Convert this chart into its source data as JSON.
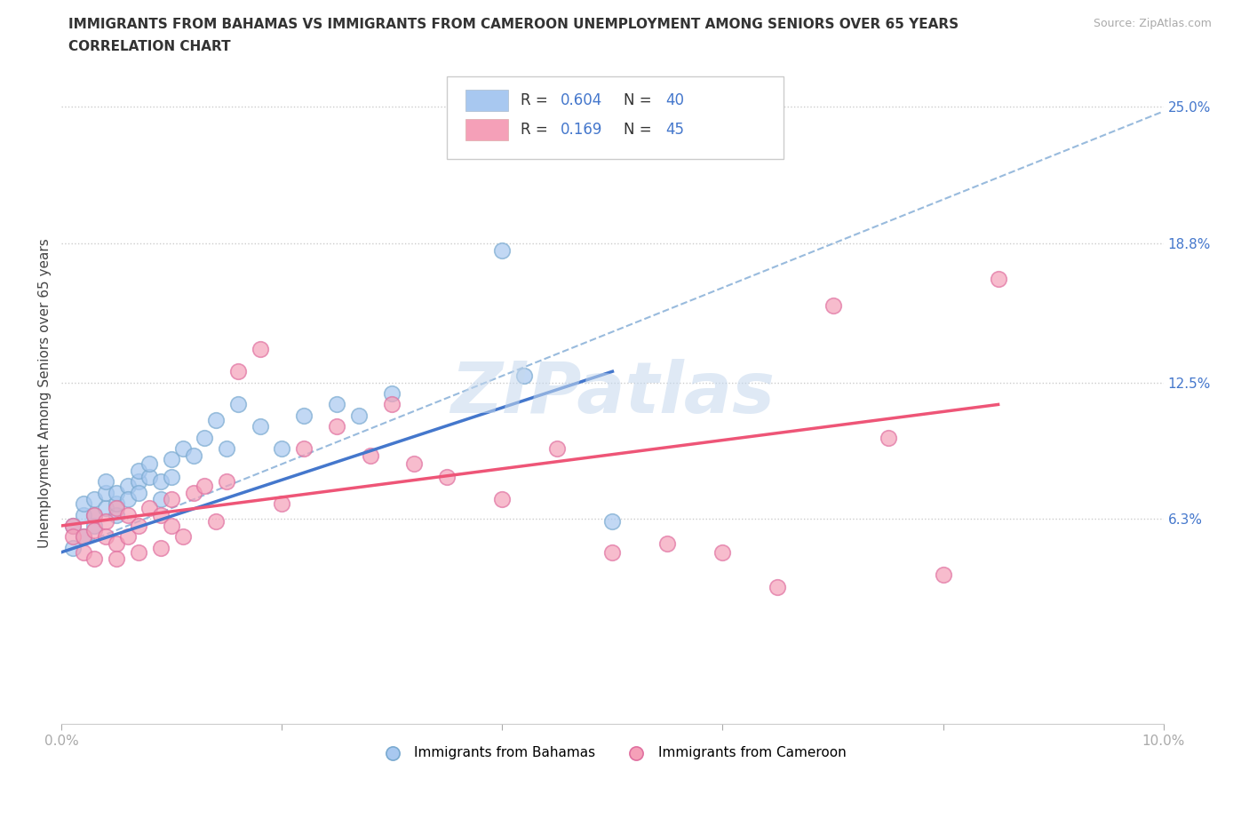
{
  "title_line1": "IMMIGRANTS FROM BAHAMAS VS IMMIGRANTS FROM CAMEROON UNEMPLOYMENT AMONG SENIORS OVER 65 YEARS",
  "title_line2": "CORRELATION CHART",
  "source_text": "Source: ZipAtlas.com",
  "ylabel": "Unemployment Among Seniors over 65 years",
  "xlim": [
    0.0,
    0.1
  ],
  "ylim": [
    -0.03,
    0.27
  ],
  "x_ticks": [
    0.0,
    0.02,
    0.04,
    0.06,
    0.08,
    0.1
  ],
  "x_tick_labels": [
    "0.0%",
    "",
    "",
    "",
    "",
    "10.0%"
  ],
  "y_tick_labels_right": [
    "25.0%",
    "18.8%",
    "12.5%",
    "6.3%"
  ],
  "y_tick_values_right": [
    0.25,
    0.188,
    0.125,
    0.063
  ],
  "bahamas_R": 0.604,
  "bahamas_N": 40,
  "cameroon_R": 0.169,
  "cameroon_N": 45,
  "bahamas_color": "#a8c8f0",
  "cameroon_color": "#f5a0b8",
  "bahamas_edge_color": "#7aaad0",
  "cameroon_edge_color": "#e070a0",
  "bahamas_line_color": "#4477cc",
  "cameroon_line_color": "#ee5577",
  "dashed_line_color": "#99bbdd",
  "legend_text_color": "#4477cc",
  "watermark": "ZIPatlas",
  "bahamas_scatter_x": [
    0.001,
    0.001,
    0.002,
    0.002,
    0.002,
    0.003,
    0.003,
    0.003,
    0.004,
    0.004,
    0.004,
    0.005,
    0.005,
    0.005,
    0.006,
    0.006,
    0.007,
    0.007,
    0.007,
    0.008,
    0.008,
    0.009,
    0.009,
    0.01,
    0.01,
    0.011,
    0.012,
    0.013,
    0.014,
    0.015,
    0.016,
    0.018,
    0.02,
    0.022,
    0.025,
    0.027,
    0.03,
    0.04,
    0.042,
    0.05
  ],
  "bahamas_scatter_y": [
    0.05,
    0.06,
    0.065,
    0.055,
    0.07,
    0.06,
    0.072,
    0.065,
    0.068,
    0.075,
    0.08,
    0.065,
    0.07,
    0.075,
    0.078,
    0.072,
    0.08,
    0.085,
    0.075,
    0.082,
    0.088,
    0.072,
    0.08,
    0.09,
    0.082,
    0.095,
    0.092,
    0.1,
    0.108,
    0.095,
    0.115,
    0.105,
    0.095,
    0.11,
    0.115,
    0.11,
    0.12,
    0.185,
    0.128,
    0.062
  ],
  "cameroon_scatter_x": [
    0.001,
    0.001,
    0.002,
    0.002,
    0.003,
    0.003,
    0.003,
    0.004,
    0.004,
    0.005,
    0.005,
    0.005,
    0.006,
    0.006,
    0.007,
    0.007,
    0.008,
    0.009,
    0.009,
    0.01,
    0.01,
    0.011,
    0.012,
    0.013,
    0.014,
    0.015,
    0.016,
    0.018,
    0.02,
    0.022,
    0.025,
    0.028,
    0.03,
    0.032,
    0.035,
    0.04,
    0.045,
    0.05,
    0.055,
    0.06,
    0.065,
    0.07,
    0.075,
    0.08,
    0.085
  ],
  "cameroon_scatter_y": [
    0.06,
    0.055,
    0.055,
    0.048,
    0.065,
    0.058,
    0.045,
    0.062,
    0.055,
    0.068,
    0.052,
    0.045,
    0.065,
    0.055,
    0.06,
    0.048,
    0.068,
    0.065,
    0.05,
    0.072,
    0.06,
    0.055,
    0.075,
    0.078,
    0.062,
    0.08,
    0.13,
    0.14,
    0.07,
    0.095,
    0.105,
    0.092,
    0.115,
    0.088,
    0.082,
    0.072,
    0.095,
    0.048,
    0.052,
    0.048,
    0.032,
    0.16,
    0.1,
    0.038,
    0.172
  ],
  "bahamas_line_x": [
    0.0,
    0.05
  ],
  "bahamas_line_y": [
    0.048,
    0.13
  ],
  "cameroon_line_x": [
    0.0,
    0.085
  ],
  "cameroon_line_y": [
    0.06,
    0.115
  ],
  "dashed_line_x": [
    0.0,
    0.1
  ],
  "dashed_line_y": [
    0.048,
    0.248
  ]
}
